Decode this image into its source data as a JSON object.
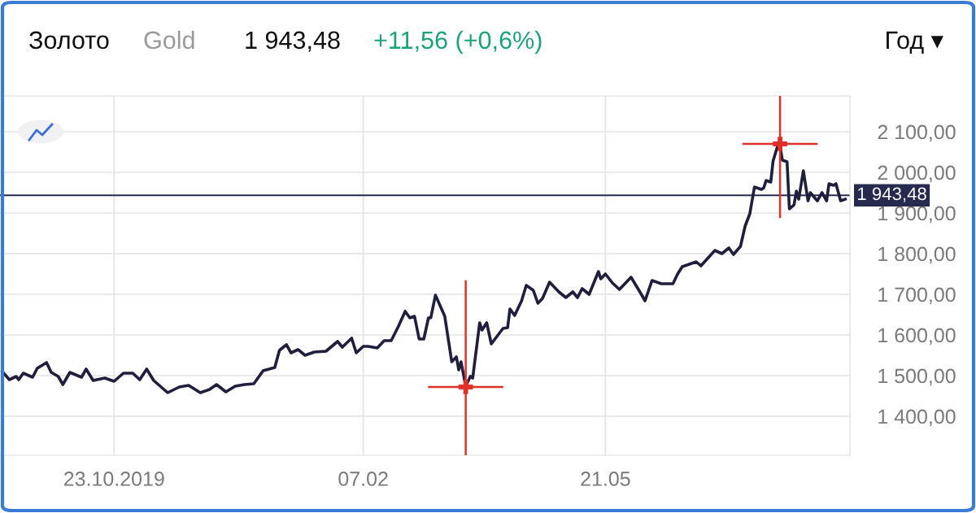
{
  "chart_data": {
    "type": "line",
    "title": "Золото",
    "subtitle": "Gold",
    "annotations": [
      "1 943,48",
      "+11,56 (+0,6%)",
      "Год ▾"
    ],
    "x": [
      "2019-09-05",
      "2019-09-08",
      "2019-09-11",
      "2019-09-12",
      "2019-09-14",
      "2019-09-18",
      "2019-09-20",
      "2019-09-24",
      "2019-09-26",
      "2019-09-29",
      "2019-10-01",
      "2019-10-04",
      "2019-10-09",
      "2019-10-11",
      "2019-10-14",
      "2019-10-19",
      "2019-10-23",
      "2019-10-27",
      "2019-10-31",
      "2019-11-03",
      "2019-11-06",
      "2019-11-09",
      "2019-11-15",
      "2019-11-20",
      "2019-11-24",
      "2019-11-29",
      "2019-12-03",
      "2019-12-06",
      "2019-12-10",
      "2019-12-14",
      "2019-12-18",
      "2019-12-22",
      "2019-12-26",
      "2019-12-31",
      "2020-01-02",
      "2020-01-05",
      "2020-01-07",
      "2020-01-10",
      "2020-01-13",
      "2020-01-17",
      "2020-01-22",
      "2020-01-27",
      "2020-01-29",
      "2020-02-02",
      "2020-02-04",
      "2020-02-07",
      "2020-02-09",
      "2020-02-13",
      "2020-02-16",
      "2020-02-19",
      "2020-02-22",
      "2020-02-25",
      "2020-02-27",
      "2020-02-29",
      "2020-03-02",
      "2020-03-04",
      "2020-03-06",
      "2020-03-07",
      "2020-03-09",
      "2020-03-13",
      "2020-03-16",
      "2020-03-18",
      "2020-03-19",
      "2020-03-20",
      "2020-03-22",
      "2020-03-24",
      "2020-03-25",
      "2020-03-28",
      "2020-03-29",
      "2020-03-31",
      "2020-04-02",
      "2020-04-07",
      "2020-04-09",
      "2020-04-10",
      "2020-04-12",
      "2020-04-15",
      "2020-04-17",
      "2020-04-20",
      "2020-04-22",
      "2020-04-24",
      "2020-04-27",
      "2020-05-01",
      "2020-05-04",
      "2020-05-07",
      "2020-05-09",
      "2020-05-11",
      "2020-05-14",
      "2020-05-18",
      "2020-05-19",
      "2020-05-21",
      "2020-05-24",
      "2020-05-27",
      "2020-06-01",
      "2020-06-05",
      "2020-06-07",
      "2020-06-10",
      "2020-06-14",
      "2020-06-19",
      "2020-06-21",
      "2020-06-23",
      "2020-06-29",
      "2020-07-01",
      "2020-07-07",
      "2020-07-10",
      "2020-07-13",
      "2020-07-15",
      "2020-07-18",
      "2020-07-20",
      "2020-07-22",
      "2020-07-24",
      "2020-07-27",
      "2020-07-28",
      "2020-07-29",
      "2020-07-31",
      "2020-08-01",
      "2020-08-03",
      "2020-08-04",
      "2020-08-05",
      "2020-08-07",
      "2020-08-08",
      "2020-08-10",
      "2020-08-11",
      "2020-08-12",
      "2020-08-14",
      "2020-08-16",
      "2020-08-17",
      "2020-08-20",
      "2020-08-22",
      "2020-08-24",
      "2020-08-25",
      "2020-08-27",
      "2020-08-28",
      "2020-08-30",
      "2020-09-01"
    ],
    "series": [
      {
        "color": "#1f1f3d",
        "values": [
          1510,
          1490,
          1498,
          1490,
          1506,
          1496,
          1518,
          1532,
          1508,
          1498,
          1478,
          1508,
          1496,
          1516,
          1488,
          1494,
          1486,
          1506,
          1506,
          1490,
          1516,
          1488,
          1458,
          1472,
          1476,
          1458,
          1466,
          1478,
          1460,
          1474,
          1478,
          1480,
          1512,
          1520,
          1562,
          1576,
          1556,
          1564,
          1550,
          1558,
          1560,
          1584,
          1570,
          1592,
          1556,
          1572,
          1572,
          1568,
          1586,
          1586,
          1620,
          1658,
          1642,
          1646,
          1590,
          1590,
          1642,
          1642,
          1698,
          1646,
          1534,
          1546,
          1514,
          1534,
          1474,
          1498,
          1494,
          1630,
          1612,
          1630,
          1578,
          1616,
          1618,
          1664,
          1648,
          1684,
          1722,
          1710,
          1678,
          1690,
          1730,
          1706,
          1692,
          1706,
          1692,
          1714,
          1700,
          1756,
          1738,
          1750,
          1728,
          1712,
          1742,
          1704,
          1684,
          1734,
          1726,
          1726,
          1750,
          1768,
          1780,
          1770,
          1808,
          1800,
          1814,
          1798,
          1818,
          1868,
          1898,
          1964,
          1958,
          1962,
          1980,
          1976,
          2028,
          2066,
          2064,
          2030,
          2026,
          1910,
          1920,
          1954,
          1934,
          2004,
          1930,
          1950,
          1930,
          1950,
          1930,
          1972,
          1968,
          1972,
          1930,
          1934
        ]
      },
      {
        "type": "scatter",
        "color": "#e0302a",
        "marker": "cross",
        "x": [
          "2020-03-22",
          "2020-08-04"
        ],
        "values": [
          1472,
          2070
        ]
      }
    ],
    "xlim": [
      "2019-09-04",
      "2020-09-03"
    ],
    "xticks": [
      {
        "value": "2019-10-23",
        "label": "23.10.2019"
      },
      {
        "value": "2020-02-07",
        "label": "07.02"
      },
      {
        "value": "2020-05-21",
        "label": "21.05"
      }
    ],
    "ylim": [
      1304,
      2188
    ],
    "yticks": [
      {
        "value": 1400,
        "label": "1 400,00"
      },
      {
        "value": 1500,
        "label": "1 500,00"
      },
      {
        "value": 1600,
        "label": "1 600,00"
      },
      {
        "value": 1700,
        "label": "1 700,00"
      },
      {
        "value": 1800,
        "label": "1 800,00"
      },
      {
        "value": 1900,
        "label": "1 900,00"
      },
      {
        "value": 2000,
        "label": "2 000,00"
      },
      {
        "value": 2100,
        "label": "2 100,00"
      }
    ],
    "ref_lines": [
      {
        "axis": "y",
        "value": 1943.48,
        "label": "1 943,48",
        "color": "#262a4f"
      }
    ],
    "grid": true
  }
}
